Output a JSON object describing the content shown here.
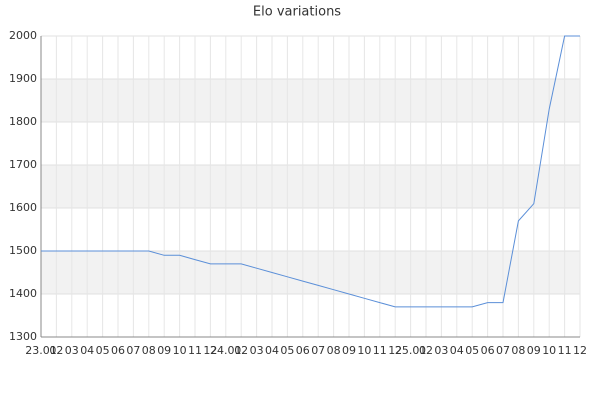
{
  "chart_data": {
    "type": "line",
    "title": "Elo variations",
    "categories": [
      "23.01",
      "02",
      "03",
      "04",
      "05",
      "06",
      "07",
      "08",
      "09",
      "10",
      "11",
      "12",
      "24.01",
      "02",
      "03",
      "04",
      "05",
      "06",
      "07",
      "08",
      "09",
      "10",
      "11",
      "12",
      "25.01",
      "02",
      "03",
      "04",
      "05",
      "06",
      "07",
      "08",
      "09",
      "10",
      "11",
      "12"
    ],
    "series": [
      {
        "name": "Elo",
        "color": "#5b8fd8",
        "values": [
          1500,
          1500,
          1500,
          1500,
          1500,
          1500,
          1500,
          1500,
          1490,
          1490,
          1480,
          1470,
          1470,
          1470,
          1460,
          1450,
          1440,
          1430,
          1420,
          1410,
          1400,
          1390,
          1380,
          1370,
          1370,
          1370,
          1370,
          1370,
          1370,
          1380,
          1380,
          1570,
          1610,
          1830,
          2000,
          2000
        ]
      }
    ],
    "ylim": [
      1300,
      2000
    ],
    "yticks": [
      1300,
      1400,
      1500,
      1600,
      1700,
      1800,
      1900,
      2000
    ],
    "grid": true
  }
}
